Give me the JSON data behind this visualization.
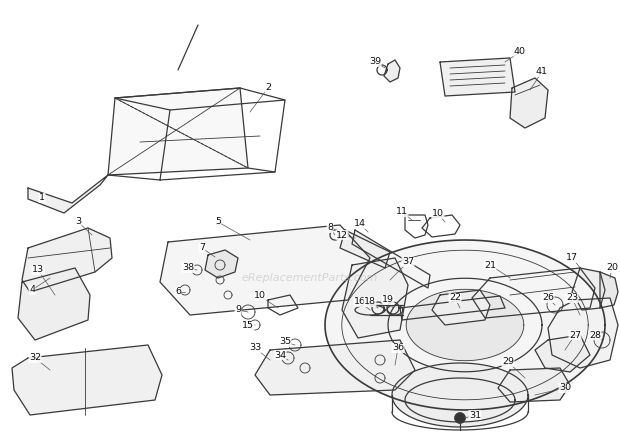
{
  "bg_color": "#ffffff",
  "line_color": "#3a3a3a",
  "line_width": 0.9,
  "thin_line": 0.6,
  "label_fontsize": 6.8,
  "watermark": "eReplacementParts.com",
  "watermark_color": "#bbbbbb",
  "watermark_alpha": 0.55
}
